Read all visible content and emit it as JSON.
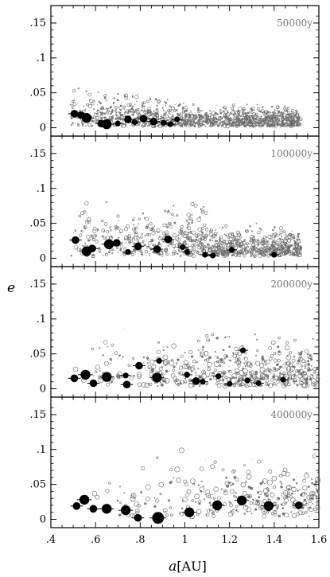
{
  "chart_data": {
    "type": "scatter",
    "xlabel_symbol": "a",
    "xlabel_unit": "[AU]",
    "ylabel": "e",
    "xlim": [
      0.4,
      1.6
    ],
    "ylim": [
      -0.012,
      0.175
    ],
    "x_ticks": [
      ".4",
      ".6",
      ".8",
      "1",
      "1.2",
      "1.4",
      "1.6"
    ],
    "y_ticks": [
      "0",
      ".05",
      ".1",
      ".15"
    ],
    "y_tick_values": [
      0,
      0.05,
      0.1,
      0.15
    ],
    "x_tick_values": [
      0.4,
      0.6,
      0.8,
      1.0,
      1.2,
      1.4,
      1.6
    ],
    "grid": false,
    "colors": {
      "embryo": "#000000",
      "planetesimal": "#555555",
      "time_label": "#777777"
    },
    "panels": [
      {
        "time_label": "50000y",
        "embryos": [
          {
            "a": 0.505,
            "e": 0.02,
            "m": 2
          },
          {
            "a": 0.535,
            "e": 0.018,
            "m": 2
          },
          {
            "a": 0.56,
            "e": 0.014,
            "m": 3
          },
          {
            "a": 0.625,
            "e": 0.006,
            "m": 2
          },
          {
            "a": 0.65,
            "e": 0.005,
            "m": 3
          },
          {
            "a": 0.7,
            "e": 0.006,
            "m": 1
          },
          {
            "a": 0.745,
            "e": 0.012,
            "m": 2
          },
          {
            "a": 0.775,
            "e": 0.008,
            "m": 1
          },
          {
            "a": 0.815,
            "e": 0.013,
            "m": 2
          },
          {
            "a": 0.86,
            "e": 0.009,
            "m": 2
          },
          {
            "a": 0.905,
            "e": 0.007,
            "m": 1
          },
          {
            "a": 0.935,
            "e": 0.005,
            "m": 1
          },
          {
            "a": 0.965,
            "e": 0.012,
            "m": 1
          }
        ]
      },
      {
        "time_label": "100000y",
        "embryos": [
          {
            "a": 0.51,
            "e": 0.026,
            "m": 2
          },
          {
            "a": 0.56,
            "e": 0.01,
            "m": 3
          },
          {
            "a": 0.585,
            "e": 0.014,
            "m": 2
          },
          {
            "a": 0.66,
            "e": 0.02,
            "m": 3
          },
          {
            "a": 0.695,
            "e": 0.022,
            "m": 2
          },
          {
            "a": 0.745,
            "e": 0.009,
            "m": 1
          },
          {
            "a": 0.79,
            "e": 0.017,
            "m": 2
          },
          {
            "a": 0.875,
            "e": 0.013,
            "m": 2
          },
          {
            "a": 0.925,
            "e": 0.027,
            "m": 2
          },
          {
            "a": 0.99,
            "e": 0.016,
            "m": 1
          },
          {
            "a": 1.01,
            "e": 0.009,
            "m": 1
          },
          {
            "a": 1.09,
            "e": 0.005,
            "m": 1
          },
          {
            "a": 1.125,
            "e": 0.004,
            "m": 1
          },
          {
            "a": 1.21,
            "e": 0.012,
            "m": 1
          },
          {
            "a": 1.4,
            "e": 0.005,
            "m": 1
          }
        ]
      },
      {
        "time_label": "200000y",
        "embryos": [
          {
            "a": 0.505,
            "e": 0.015,
            "m": 2
          },
          {
            "a": 0.555,
            "e": 0.02,
            "m": 3
          },
          {
            "a": 0.59,
            "e": 0.008,
            "m": 2
          },
          {
            "a": 0.65,
            "e": 0.017,
            "m": 3
          },
          {
            "a": 0.735,
            "e": 0.019,
            "m": 1
          },
          {
            "a": 0.74,
            "e": 0.006,
            "m": 2
          },
          {
            "a": 0.795,
            "e": 0.033,
            "m": 2
          },
          {
            "a": 0.875,
            "e": 0.016,
            "m": 3
          },
          {
            "a": 0.885,
            "e": 0.04,
            "m": 1
          },
          {
            "a": 1.01,
            "e": 0.02,
            "m": 1
          },
          {
            "a": 1.05,
            "e": 0.011,
            "m": 2
          },
          {
            "a": 1.08,
            "e": 0.01,
            "m": 1
          },
          {
            "a": 1.15,
            "e": 0.018,
            "m": 1
          },
          {
            "a": 1.2,
            "e": 0.007,
            "m": 1
          },
          {
            "a": 1.26,
            "e": 0.055,
            "m": 1
          },
          {
            "a": 1.28,
            "e": 0.012,
            "m": 1
          },
          {
            "a": 1.33,
            "e": 0.008,
            "m": 1
          },
          {
            "a": 1.44,
            "e": 0.013,
            "m": 1
          }
        ]
      },
      {
        "time_label": "400000y",
        "embryos": [
          {
            "a": 0.515,
            "e": 0.019,
            "m": 2
          },
          {
            "a": 0.55,
            "e": 0.028,
            "m": 3
          },
          {
            "a": 0.59,
            "e": 0.015,
            "m": 2
          },
          {
            "a": 0.65,
            "e": 0.015,
            "m": 3
          },
          {
            "a": 0.735,
            "e": 0.013,
            "m": 3
          },
          {
            "a": 0.79,
            "e": 0.002,
            "m": 2
          },
          {
            "a": 0.88,
            "e": 0.002,
            "m": 4
          },
          {
            "a": 1.02,
            "e": 0.01,
            "m": 3
          },
          {
            "a": 1.145,
            "e": 0.02,
            "m": 3
          },
          {
            "a": 1.255,
            "e": 0.027,
            "m": 3
          },
          {
            "a": 1.375,
            "e": 0.019,
            "m": 3
          },
          {
            "a": 1.51,
            "e": 0.02,
            "m": 2
          }
        ]
      }
    ]
  }
}
